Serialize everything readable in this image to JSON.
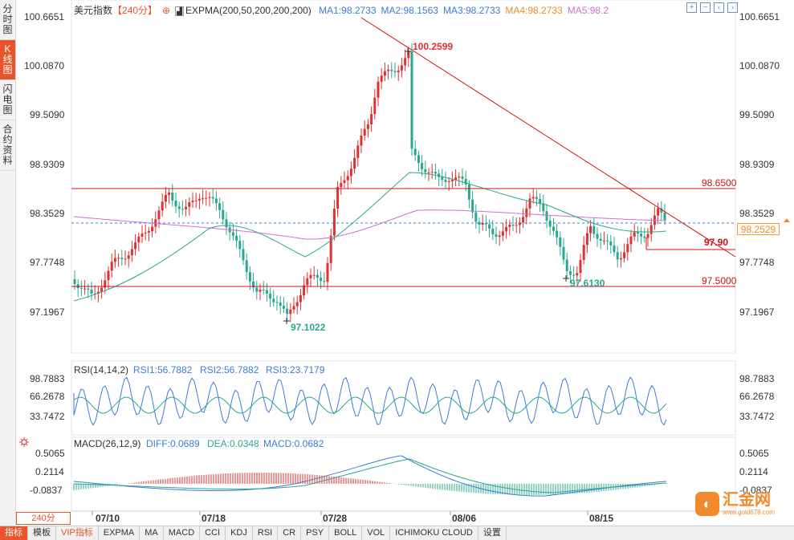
{
  "rail": {
    "items": [
      {
        "label": "分时图",
        "active": false
      },
      {
        "label": "K线图",
        "active": true
      },
      {
        "label": "闪电图",
        "active": false
      },
      {
        "label": "合约资料",
        "active": false
      }
    ]
  },
  "header": {
    "instrument": "美元指数",
    "period": "【240分】",
    "indicator": "EXPMA(200,50,200,200,200)",
    "ma": [
      {
        "label": "MA1:98.2733",
        "color": "#3b7dd8"
      },
      {
        "label": "MA2:98.1563",
        "color": "#3b7dd8"
      },
      {
        "label": "MA3:98.2733",
        "color": "#3b7dd8"
      },
      {
        "label": "MA4:98.2733",
        "color": "#f08a2c"
      },
      {
        "label": "MA5:98.2",
        "color": "#d070d0"
      }
    ]
  },
  "price_axis": {
    "labels": [
      "100.6651",
      "100.0870",
      "99.5090",
      "98.9309",
      "98.3529",
      "97.7748",
      "97.1967"
    ],
    "current_price": "98.2529"
  },
  "annotations": {
    "high": "100.2599",
    "low": "97.1022",
    "local_low": "97.6130",
    "res1": "98.6500",
    "res2": "97.90",
    "sup1": "97.5000"
  },
  "rsi": {
    "title": "RSI(14,14,2)",
    "values": [
      {
        "label": "RSI1:56.7882",
        "color": "#3b7dd8"
      },
      {
        "label": "RSI2:56.7882",
        "color": "#3b7dd8"
      },
      {
        "label": "RSI3:23.7179",
        "color": "#3b7dd8"
      }
    ],
    "axis": [
      "98.7883",
      "66.2678",
      "33.7472"
    ]
  },
  "macd": {
    "title": "MACD(26,12,9)",
    "values": [
      {
        "label": "DIFF:0.0689",
        "color": "#3b7dd8"
      },
      {
        "label": "DEA:0.0348",
        "color": "#2aa78f"
      },
      {
        "label": "MACD:0.0682",
        "color": "#3b7dd8"
      }
    ],
    "axis": [
      "0.5065",
      "0.2114",
      "-0.0837"
    ]
  },
  "dates": [
    "07/10",
    "07/18",
    "07/28",
    "08/06",
    "08/15"
  ],
  "period_selector": "240分",
  "bottom_tabs": [
    "指标",
    "模板",
    "VIP指标",
    "EXPMA",
    "MA",
    "MACD",
    "CCI",
    "KDJ",
    "RSI",
    "CR",
    "PSY",
    "BOLL",
    "VOL",
    "ICHIMOKU CLOUD",
    "设置"
  ],
  "logo": {
    "name": "汇金网",
    "site": "www.gold678.com"
  },
  "colors": {
    "up": "#e03030",
    "down": "#2aa78f",
    "accent": "#e8552b",
    "resistance": "#d01010"
  }
}
